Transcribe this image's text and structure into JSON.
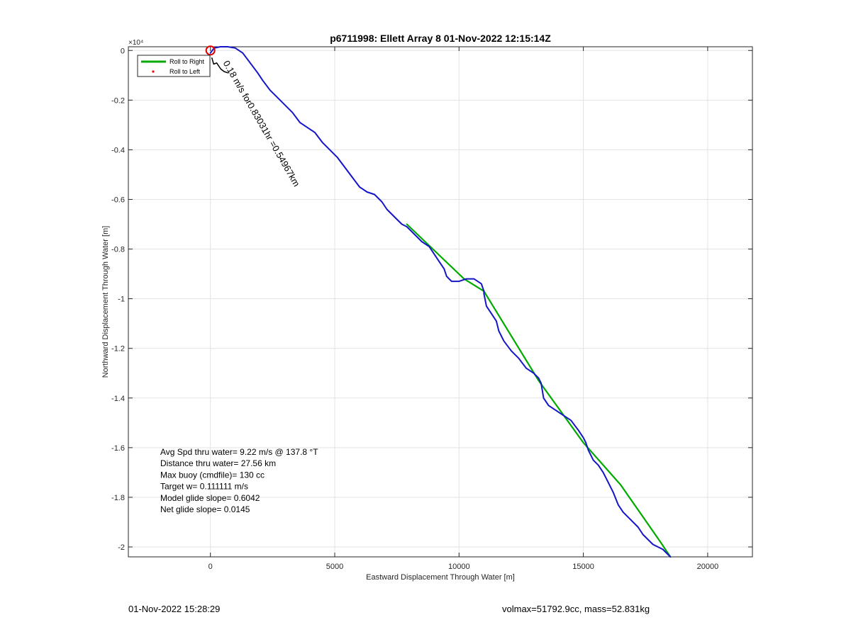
{
  "chart_data": {
    "type": "line",
    "title": "p6711998: Ellett Array 8 01-Nov-2022 12:15:14Z",
    "xlabel": "Eastward Displacement Through Water [m]",
    "ylabel": "Northward Displacement Through Water [m]",
    "xlim": [
      -3300,
      21800
    ],
    "ylim": [
      -20400,
      150
    ],
    "y_exponent_label": "×10⁴",
    "xticks": [
      0,
      5000,
      10000,
      15000,
      20000
    ],
    "xtick_labels": [
      "0",
      "5000",
      "10000",
      "15000",
      "20000"
    ],
    "yticks": [
      0,
      -2000,
      -4000,
      -6000,
      -8000,
      -10000,
      -12000,
      -14000,
      -16000,
      -18000,
      -20000
    ],
    "ytick_labels": [
      "0",
      "-0.2",
      "-0.4",
      "-0.6",
      "-0.8",
      "-1",
      "-1.2",
      "-1.4",
      "-1.6",
      "-1.8",
      "-2"
    ],
    "grid": true,
    "legend_position": "top-left",
    "legend": [
      {
        "label": "Roll to Right",
        "color": "#00aa00",
        "marker": "line"
      },
      {
        "label": "Roll to Left",
        "color": "#ff0000",
        "marker": "dot"
      }
    ],
    "series": [
      {
        "name": "Roll to Right",
        "color": "#00aa00",
        "x": [
          7900,
          10200,
          11000,
          13200,
          15000,
          16500,
          18100,
          18500
        ],
        "y": [
          -7000,
          -9200,
          -9700,
          -13300,
          -15800,
          -17500,
          -19800,
          -20400
        ]
      },
      {
        "color": "#1414c8",
        "x": [
          0,
          150,
          400,
          700,
          1000,
          1300,
          1600,
          1900,
          2100,
          2400,
          2700,
          3000,
          3300,
          3600,
          3900,
          4200,
          4500,
          4800,
          5100,
          5400,
          5700,
          6000,
          6300,
          6600,
          6900,
          7100,
          7300,
          7500,
          7700,
          7900,
          8200,
          8500,
          8800,
          9000,
          9200,
          9400,
          9500,
          9700,
          10000,
          10300,
          10600,
          10900,
          11000,
          11000,
          11100,
          11300,
          11500,
          11600,
          11800,
          12100,
          12400,
          12700,
          13000,
          13200,
          13300,
          13400,
          13600,
          13900,
          14200,
          14500,
          14800,
          15000,
          15100,
          15200,
          15400,
          15600,
          15800,
          16000,
          16200,
          16400,
          16600,
          16900,
          17200,
          17400,
          17600,
          17800,
          18000,
          18200,
          18500
        ],
        "y": [
          -100,
          100,
          150,
          150,
          100,
          -100,
          -500,
          -900,
          -1200,
          -1600,
          -1900,
          -2200,
          -2500,
          -2900,
          -3100,
          -3300,
          -3700,
          -4000,
          -4300,
          -4700,
          -5100,
          -5500,
          -5700,
          -5800,
          -6100,
          -6400,
          -6600,
          -6800,
          -7000,
          -7100,
          -7400,
          -7700,
          -7900,
          -8200,
          -8500,
          -8800,
          -9100,
          -9300,
          -9300,
          -9200,
          -9200,
          -9400,
          -9700,
          -9800,
          -10300,
          -10600,
          -10900,
          -11300,
          -11700,
          -12100,
          -12400,
          -12800,
          -13000,
          -13200,
          -13400,
          -14000,
          -14300,
          -14500,
          -14700,
          -14900,
          -15300,
          -15600,
          -15800,
          -16100,
          -16500,
          -16700,
          -17000,
          -17400,
          -17800,
          -18300,
          -18600,
          -18900,
          -19200,
          -19500,
          -19700,
          -19900,
          -20000,
          -20100,
          -20400
        ]
      },
      {
        "color": "#000000",
        "x": [
          60,
          130,
          250,
          420,
          550,
          700
        ],
        "y": [
          -300,
          -550,
          -500,
          -750,
          -850,
          -900
        ]
      }
    ],
    "annotations": {
      "start_marker": {
        "x": 0,
        "y": 0,
        "color": "#dd0000"
      },
      "rotated_label": {
        "text": "0.18 m/s for0.83031hr =0.54967km",
        "x": 500,
        "y": -500
      },
      "stats": [
        "Avg Spd thru water=  9.22 m/s @ 137.8 °T",
        "Distance thru water= 27.56 km",
        "Max buoy (cmdfile)= 130 cc",
        "Target w= 0.111111 m/s",
        "Model glide slope= 0.6042",
        "Net glide slope= 0.0145"
      ]
    }
  },
  "footer": {
    "left": "01-Nov-2022 15:28:29",
    "right": "volmax=51792.9cc, mass=52.831kg"
  }
}
